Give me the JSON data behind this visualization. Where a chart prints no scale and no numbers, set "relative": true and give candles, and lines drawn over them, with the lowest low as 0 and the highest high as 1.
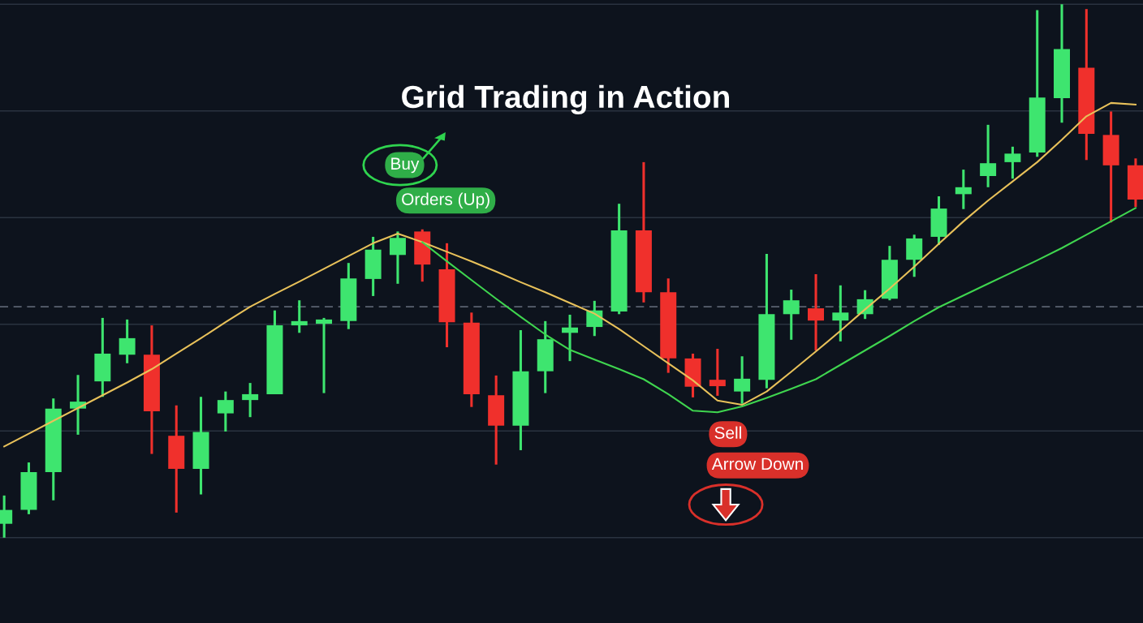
{
  "chart_data": {
    "type": "candlestick",
    "title": "Grid Trading in Action",
    "relative": true,
    "categories": [
      null,
      null,
      null,
      null,
      null,
      null,
      null,
      null,
      null,
      null,
      null,
      null,
      null,
      null,
      null,
      null,
      null,
      null,
      null,
      null,
      null,
      null,
      null,
      null,
      null,
      null,
      null,
      null,
      null,
      null,
      null,
      null,
      null,
      null,
      null,
      null,
      null,
      null,
      null,
      null,
      null,
      null,
      null,
      null,
      null,
      null,
      null
    ],
    "ohlc": [
      [
        0.026,
        0.079,
        0,
        0.052
      ],
      [
        0.052,
        0.141,
        0.044,
        0.123
      ],
      [
        0.123,
        0.261,
        0.07,
        0.242
      ],
      [
        0.242,
        0.305,
        0.193,
        0.255
      ],
      [
        0.293,
        0.412,
        0.264,
        0.345
      ],
      [
        0.343,
        0.409,
        0.327,
        0.374
      ],
      [
        0.343,
        0.398,
        0.157,
        0.237
      ],
      [
        0.191,
        0.248,
        0.047,
        0.129
      ],
      [
        0.129,
        0.264,
        0.081,
        0.198
      ],
      [
        0.233,
        0.274,
        0.199,
        0.258
      ],
      [
        0.258,
        0.29,
        0.226,
        0.269
      ],
      [
        0.269,
        0.426,
        0.269,
        0.398
      ],
      [
        0.398,
        0.445,
        0.384,
        0.406
      ],
      [
        0.401,
        0.412,
        0.271,
        0.409
      ],
      [
        0.406,
        0.515,
        0.391,
        0.486
      ],
      [
        0.485,
        0.564,
        0.453,
        0.54
      ],
      [
        0.53,
        0.574,
        0.476,
        0.562
      ],
      [
        0.574,
        0.578,
        0.48,
        0.512
      ],
      [
        0.503,
        0.552,
        0.357,
        0.404
      ],
      [
        0.403,
        0.422,
        0.245,
        0.269
      ],
      [
        0.267,
        0.304,
        0.137,
        0.21
      ],
      [
        0.21,
        0.389,
        0.164,
        0.312
      ],
      [
        0.312,
        0.406,
        0.271,
        0.372
      ],
      [
        0.384,
        0.418,
        0.331,
        0.394
      ],
      [
        0.395,
        0.444,
        0.378,
        0.426
      ],
      [
        0.424,
        0.626,
        0.419,
        0.576
      ],
      [
        0.576,
        0.704,
        0.441,
        0.46
      ],
      [
        0.46,
        0.486,
        0.309,
        0.336
      ],
      [
        0.336,
        0.345,
        0.263,
        0.283
      ],
      [
        0.296,
        0.354,
        0.266,
        0.284
      ],
      [
        0.274,
        0.34,
        0.251,
        0.298
      ],
      [
        0.296,
        0.532,
        0.28,
        0.419
      ],
      [
        0.419,
        0.465,
        0.371,
        0.445
      ],
      [
        0.43,
        0.494,
        0.351,
        0.407
      ],
      [
        0.407,
        0.473,
        0.368,
        0.422
      ],
      [
        0.419,
        0.464,
        0.41,
        0.447
      ],
      [
        0.448,
        0.547,
        0.445,
        0.521
      ],
      [
        0.521,
        0.568,
        0.489,
        0.561
      ],
      [
        0.564,
        0.64,
        0.549,
        0.617
      ],
      [
        0.644,
        0.69,
        0.616,
        0.657
      ],
      [
        0.678,
        0.774,
        0.657,
        0.702
      ],
      [
        0.704,
        0.733,
        0.673,
        0.72
      ],
      [
        0.722,
        0.989,
        0.714,
        0.825
      ],
      [
        0.824,
        1,
        0.778,
        0.916
      ],
      [
        0.881,
        0.991,
        0.708,
        0.757
      ],
      [
        0.755,
        0.799,
        0.591,
        0.698
      ],
      [
        0.698,
        0.711,
        0.62,
        0.634
      ]
    ],
    "colors": [
      "#3ee56f",
      "#3ee56f",
      "#3ee56f",
      "#3ee56f",
      "#3ee56f",
      "#3ee56f",
      "#f0302c",
      "#f0302c",
      "#3ee56f",
      "#3ee56f",
      "#3ee56f",
      "#3ee56f",
      "#3ee56f",
      "#3ee56f",
      "#3ee56f",
      "#3ee56f",
      "#3ee56f",
      "#f0302c",
      "#f0302c",
      "#f0302c",
      "#f0302c",
      "#3ee56f",
      "#3ee56f",
      "#3ee56f",
      "#3ee56f",
      "#3ee56f",
      "#f0302c",
      "#f0302c",
      "#f0302c",
      "#f0302c",
      "#3ee56f",
      "#3ee56f",
      "#3ee56f",
      "#f0302c",
      "#3ee56f",
      "#3ee56f",
      "#3ee56f",
      "#3ee56f",
      "#3ee56f",
      "#3ee56f",
      "#3ee56f",
      "#3ee56f",
      "#3ee56f",
      "#3ee56f",
      "#f0302c",
      "#f0302c",
      "#f0302c"
    ],
    "series": [
      {
        "type": "line",
        "color": "#e8c15a",
        "values": [
          0.171,
          0.195,
          0.219,
          0.243,
          0.267,
          0.291,
          0.316,
          0.345,
          0.374,
          0.404,
          0.433,
          0.457,
          0.48,
          0.504,
          0.528,
          0.552,
          0.57,
          0.554,
          0.536,
          0.518,
          0.499,
          0.479,
          0.46,
          0.44,
          0.42,
          0.391,
          0.359,
          0.327,
          0.295,
          0.257,
          0.249,
          0.274,
          0.311,
          0.349,
          0.388,
          0.428,
          0.467,
          0.508,
          0.551,
          0.593,
          0.632,
          0.668,
          0.704,
          0.746,
          0.79,
          0.815,
          0.812
        ]
      },
      {
        "type": "line",
        "color": "#3fd54f",
        "values": [
          null,
          null,
          null,
          null,
          null,
          null,
          null,
          null,
          null,
          null,
          null,
          null,
          null,
          null,
          null,
          null,
          null,
          0.554,
          0.518,
          0.483,
          0.448,
          0.414,
          0.381,
          0.352,
          0.334,
          0.316,
          0.297,
          0.269,
          0.238,
          0.235,
          0.246,
          0.262,
          0.279,
          0.297,
          0.324,
          0.351,
          0.378,
          0.406,
          0.432,
          0.454,
          0.476,
          0.498,
          0.52,
          0.543,
          0.568,
          0.593,
          0.618
        ]
      }
    ],
    "ref_lines": [
      {
        "axis": "y",
        "value": 0.433,
        "color": "#5a6270",
        "line_style": "dashed"
      }
    ],
    "annotations": [
      "Buy",
      "Orders (Up)",
      "Sell",
      "Arrow Down"
    ],
    "grid": true
  }
}
